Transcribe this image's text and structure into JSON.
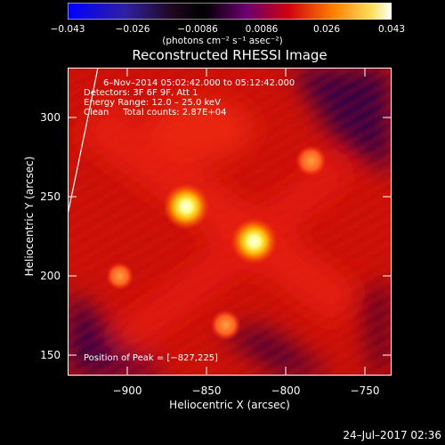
{
  "colorbar": {
    "ticks": [
      "−0.043",
      "−0.026",
      "−0.0086",
      "0.0086",
      "0.026",
      "0.043"
    ],
    "units": "(photons cm⁻² s⁻¹ asec⁻²)"
  },
  "title": "Reconstructed RHESSI Image",
  "info": {
    "line1": "6–Nov–2014 05:02:42.000 to 05:12:42.000",
    "line2": "Detectors: 3F 6F 9F, Att 1",
    "line3": "Energy Range: 12.0 – 25.0 keV",
    "line4": "Clean     Total counts: 2.87E+04"
  },
  "peak_text": "Position of Peak = [−827,225]",
  "axes": {
    "xlabel": "Heliocentric X (arcsec)",
    "ylabel": "Heliocentric Y (arcsec)",
    "xticks": [
      "−900",
      "−850",
      "−800",
      "−750"
    ],
    "yticks": [
      "300",
      "250",
      "200",
      "150"
    ]
  },
  "image_data": {
    "xlim": [
      -945,
      -740
    ],
    "ylim": [
      140,
      335
    ],
    "sources": [
      {
        "x": -870,
        "y": 247,
        "intensity": 1.0
      },
      {
        "x": -827,
        "y": 225,
        "intensity": 1.0
      },
      {
        "x": -791,
        "y": 276,
        "intensity": 0.55
      },
      {
        "x": -845,
        "y": 172,
        "intensity": 0.5
      },
      {
        "x": -912,
        "y": 203,
        "intensity": 0.35
      }
    ]
  },
  "timestamp": "24–Jul–2017 02:36"
}
